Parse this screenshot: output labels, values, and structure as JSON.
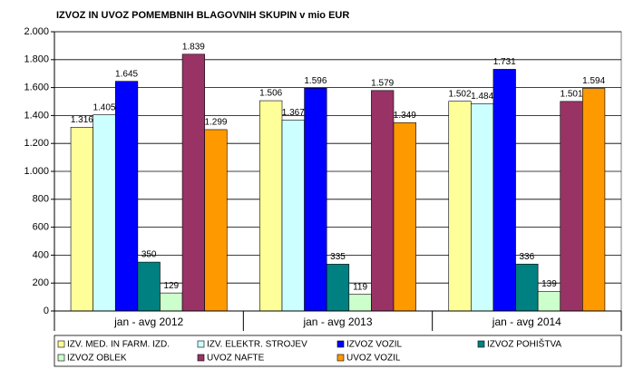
{
  "chart_data": {
    "type": "bar",
    "title": "IZVOZ IN UVOZ POMEMBNIH BLAGOVNIH SKUPIN v mio EUR",
    "categories": [
      "jan - avg 2012",
      "jan - avg 2013",
      "jan - avg 2014"
    ],
    "series": [
      {
        "name": "IZV. MED. IN FARM. IZD.",
        "color": "#ffff99",
        "values": [
          1316,
          1506,
          1502
        ],
        "value_labels": [
          "1.316",
          "1.506",
          "1.502"
        ]
      },
      {
        "name": "IZV. ELEKTR. STROJEV",
        "color": "#ccffff",
        "values": [
          1405,
          1367,
          1484
        ],
        "value_labels": [
          "1.405",
          "1.367",
          "1.484"
        ]
      },
      {
        "name": "IZVOZ VOZIL",
        "color": "#0000ff",
        "values": [
          1645,
          1596,
          1731
        ],
        "value_labels": [
          "1.645",
          "1.596",
          "1.731"
        ]
      },
      {
        "name": "IZVOZ POHIŠTVA",
        "color": "#008080",
        "values": [
          350,
          335,
          336
        ],
        "value_labels": [
          "350",
          "335",
          "336"
        ]
      },
      {
        "name": "IZVOZ OBLEK",
        "color": "#ccffcc",
        "values": [
          129,
          119,
          139
        ],
        "value_labels": [
          "129",
          "119",
          "139"
        ]
      },
      {
        "name": "UVOZ NAFTE",
        "color": "#993366",
        "values": [
          1839,
          1579,
          1501
        ],
        "value_labels": [
          "1.839",
          "1.579",
          "1.501"
        ]
      },
      {
        "name": "UVOZ VOZIL",
        "color": "#ff9900",
        "values": [
          1299,
          1349,
          1594
        ],
        "value_labels": [
          "1.299",
          "1.349",
          "1.594"
        ]
      }
    ],
    "ylim": [
      0,
      2000
    ],
    "yticks": [
      0,
      200,
      400,
      600,
      800,
      {
        "value": 1000,
        "label": "1.000"
      },
      {
        "value": 1200,
        "label": "1.200"
      },
      {
        "value": 1400,
        "label": "1.400"
      },
      {
        "value": 1600,
        "label": "1.600"
      },
      {
        "value": 1800,
        "label": "1.800"
      },
      {
        "value": 2000,
        "label": "2.000"
      }
    ],
    "grid": true,
    "legend": "bottom"
  }
}
